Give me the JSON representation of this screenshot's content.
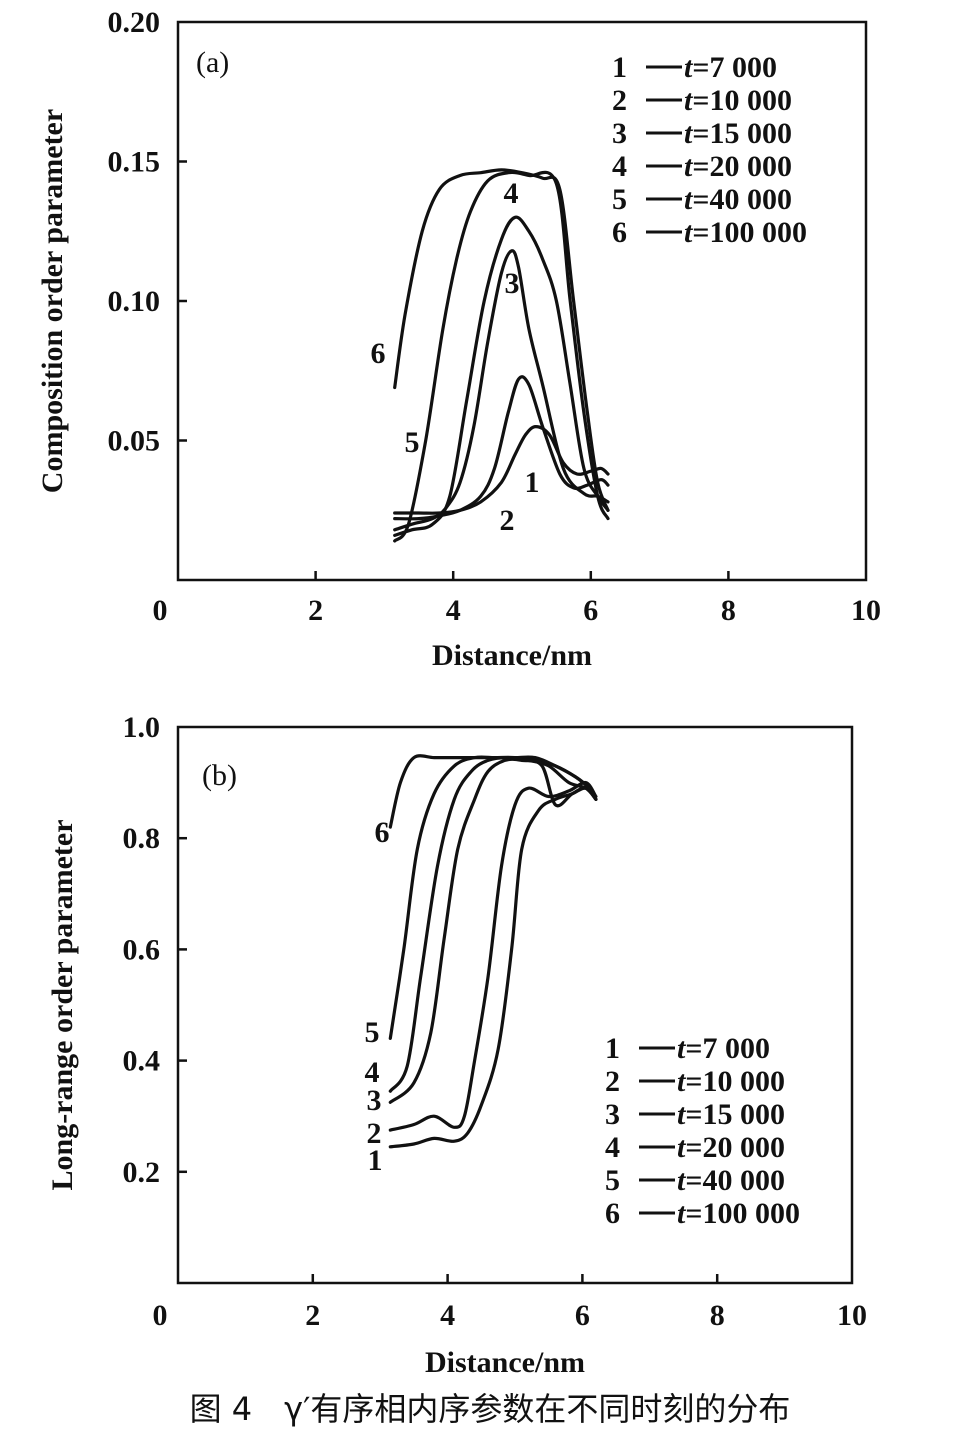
{
  "caption": "图 4　γ′有序相内序参数在不同时刻的分布",
  "legend_t_prefix": "t=",
  "chart_data": [
    {
      "type": "line",
      "panel_label": "(a)",
      "xlabel": "Distance/nm",
      "ylabel": "Composition order parameter",
      "xlim": [
        0,
        10
      ],
      "ylim": [
        0,
        0.2
      ],
      "xticks": [
        "0",
        "2",
        "4",
        "6",
        "8",
        "10"
      ],
      "yticks": [
        "0.05",
        "0.10",
        "0.15",
        "0.20"
      ],
      "legend_position": "top-right",
      "series": [
        {
          "id": "1",
          "name": "7 000",
          "x": [
            3.15,
            3.5,
            3.8,
            4.1,
            4.4,
            4.7,
            4.9,
            5.05,
            5.2,
            5.4,
            5.6,
            5.8,
            6.0,
            6.15,
            6.25
          ],
          "y": [
            0.024,
            0.024,
            0.024,
            0.025,
            0.028,
            0.035,
            0.045,
            0.052,
            0.055,
            0.052,
            0.042,
            0.038,
            0.039,
            0.04,
            0.038
          ]
        },
        {
          "id": "2",
          "name": "10 000",
          "x": [
            3.15,
            3.5,
            3.8,
            4.1,
            4.4,
            4.6,
            4.8,
            4.95,
            5.1,
            5.3,
            5.55,
            5.75,
            5.95,
            6.15,
            6.25
          ],
          "y": [
            0.022,
            0.022,
            0.023,
            0.025,
            0.03,
            0.04,
            0.06,
            0.072,
            0.07,
            0.055,
            0.038,
            0.033,
            0.034,
            0.036,
            0.034
          ]
        },
        {
          "id": "3",
          "name": "15 000",
          "x": [
            3.15,
            3.4,
            3.7,
            3.9,
            4.1,
            4.3,
            4.5,
            4.7,
            4.85,
            4.95,
            5.1,
            5.3,
            5.6,
            5.9,
            6.1,
            6.25
          ],
          "y": [
            0.018,
            0.02,
            0.022,
            0.026,
            0.035,
            0.055,
            0.085,
            0.11,
            0.118,
            0.112,
            0.09,
            0.07,
            0.04,
            0.031,
            0.03,
            0.028
          ]
        },
        {
          "id": "4",
          "name": "20 000",
          "x": [
            3.15,
            3.4,
            3.7,
            3.95,
            4.2,
            4.45,
            4.7,
            4.9,
            5.1,
            5.3,
            5.5,
            5.7,
            5.9,
            6.1,
            6.25
          ],
          "y": [
            0.016,
            0.018,
            0.02,
            0.03,
            0.065,
            0.1,
            0.122,
            0.13,
            0.125,
            0.115,
            0.1,
            0.07,
            0.04,
            0.03,
            0.025
          ]
        },
        {
          "id": "5",
          "name": "40 000",
          "x": [
            3.15,
            3.35,
            3.6,
            3.85,
            4.05,
            4.25,
            4.5,
            4.8,
            5.1,
            5.5,
            5.7,
            5.9,
            6.1,
            6.25
          ],
          "y": [
            0.014,
            0.02,
            0.05,
            0.09,
            0.115,
            0.132,
            0.143,
            0.146,
            0.145,
            0.142,
            0.1,
            0.06,
            0.03,
            0.022
          ]
        },
        {
          "id": "6",
          "name": "100 000",
          "x": [
            3.15,
            3.3,
            3.55,
            3.8,
            4.1,
            4.4,
            4.7,
            5.0,
            5.3,
            5.55,
            5.75,
            5.95,
            6.1,
            6.25
          ],
          "y": [
            0.069,
            0.095,
            0.125,
            0.14,
            0.145,
            0.146,
            0.147,
            0.146,
            0.144,
            0.14,
            0.1,
            0.06,
            0.035,
            0.025
          ]
        }
      ]
    },
    {
      "type": "line",
      "panel_label": "(b)",
      "xlabel": "Distance/nm",
      "ylabel": "Long-range order parameter",
      "xlim": [
        0,
        10
      ],
      "ylim": [
        0,
        1.0
      ],
      "xticks": [
        "0",
        "2",
        "4",
        "6",
        "8",
        "10"
      ],
      "yticks": [
        "0.2",
        "0.4",
        "0.6",
        "0.8",
        "1.0"
      ],
      "legend_position": "bottom-right",
      "series": [
        {
          "id": "1",
          "name": "7 000",
          "x": [
            3.15,
            3.5,
            3.8,
            4.1,
            4.3,
            4.5,
            4.75,
            4.95,
            5.1,
            5.35,
            5.6,
            5.85,
            6.05,
            6.2
          ],
          "y": [
            0.245,
            0.25,
            0.26,
            0.255,
            0.27,
            0.32,
            0.42,
            0.6,
            0.78,
            0.85,
            0.87,
            0.88,
            0.89,
            0.87
          ]
        },
        {
          "id": "2",
          "name": "10 000",
          "x": [
            3.15,
            3.5,
            3.8,
            4.1,
            4.25,
            4.4,
            4.6,
            4.8,
            5.0,
            5.2,
            5.5,
            5.8,
            6.05,
            6.2
          ],
          "y": [
            0.275,
            0.285,
            0.3,
            0.28,
            0.3,
            0.4,
            0.55,
            0.75,
            0.86,
            0.89,
            0.875,
            0.885,
            0.9,
            0.875
          ]
        },
        {
          "id": "3",
          "name": "15 000",
          "x": [
            3.15,
            3.5,
            3.75,
            3.95,
            4.15,
            4.4,
            4.6,
            4.85,
            5.1,
            5.4,
            5.6,
            5.85,
            6.05,
            6.2
          ],
          "y": [
            0.325,
            0.36,
            0.45,
            0.62,
            0.78,
            0.87,
            0.92,
            0.94,
            0.94,
            0.93,
            0.86,
            0.88,
            0.89,
            0.87
          ]
        },
        {
          "id": "4",
          "name": "20 000",
          "x": [
            3.15,
            3.4,
            3.6,
            3.85,
            4.1,
            4.35,
            4.6,
            4.9,
            5.2,
            5.5,
            5.8,
            6.05,
            6.2
          ],
          "y": [
            0.345,
            0.39,
            0.55,
            0.75,
            0.87,
            0.92,
            0.94,
            0.945,
            0.94,
            0.93,
            0.9,
            0.89,
            0.87
          ]
        },
        {
          "id": "5",
          "name": "40 000",
          "x": [
            3.15,
            3.35,
            3.55,
            3.8,
            4.1,
            4.4,
            4.7,
            5.0,
            5.3,
            5.6,
            5.9,
            6.1,
            6.2
          ],
          "y": [
            0.44,
            0.6,
            0.78,
            0.88,
            0.93,
            0.945,
            0.945,
            0.945,
            0.94,
            0.93,
            0.91,
            0.89,
            0.87
          ]
        },
        {
          "id": "6",
          "name": "100 000",
          "x": [
            3.15,
            3.3,
            3.5,
            3.8,
            4.1,
            4.4,
            4.7,
            5.0,
            5.3,
            5.6,
            5.9,
            6.1,
            6.2
          ],
          "y": [
            0.82,
            0.9,
            0.945,
            0.945,
            0.945,
            0.945,
            0.945,
            0.945,
            0.945,
            0.93,
            0.91,
            0.89,
            0.87
          ]
        }
      ]
    }
  ]
}
